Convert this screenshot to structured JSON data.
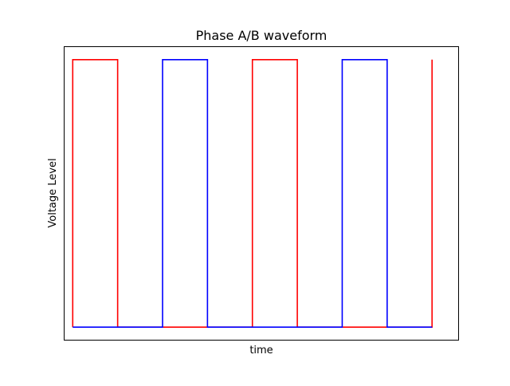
{
  "chart_data": {
    "type": "line",
    "title": "Phase A/B waveform",
    "xlabel": "time",
    "ylabel": "Voltage Level",
    "grid": false,
    "legend": "none",
    "xlim": [
      -0.2,
      8.6
    ],
    "ylim": [
      -0.05,
      1.05
    ],
    "xticks": [],
    "yticks": [],
    "series": [
      {
        "color": "#ff0000",
        "x": [
          0,
          0,
          1,
          1,
          2,
          2,
          3,
          3,
          4,
          4,
          5,
          5,
          6,
          6,
          7,
          7,
          8,
          8
        ],
        "y": [
          0,
          1,
          1,
          0,
          0,
          0,
          0,
          0,
          0,
          1,
          1,
          0,
          0,
          0,
          0,
          0,
          0,
          1
        ]
      },
      {
        "color": "#0000ff",
        "x": [
          0,
          0,
          1,
          1,
          2,
          2,
          3,
          3,
          4,
          4,
          5,
          5,
          6,
          6,
          7,
          7,
          8,
          8
        ],
        "y": [
          0,
          0,
          0,
          0,
          0,
          1,
          1,
          0,
          0,
          0,
          0,
          0,
          0,
          1,
          1,
          0,
          0,
          0
        ]
      }
    ]
  }
}
